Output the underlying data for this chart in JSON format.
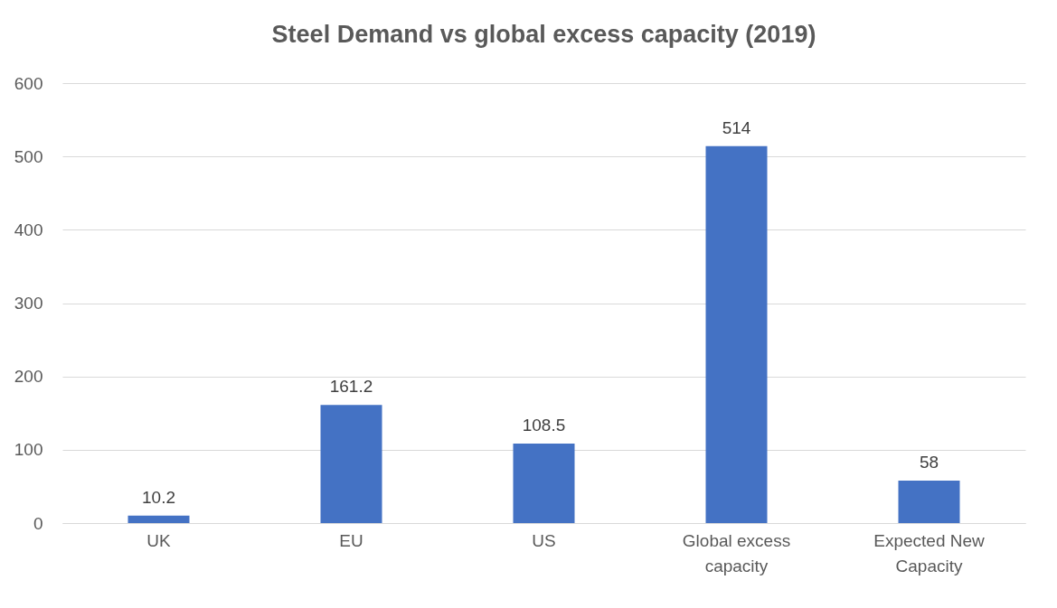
{
  "chart_data": {
    "type": "bar",
    "title": "Steel Demand vs global excess capacity (2019)",
    "categories": [
      "UK",
      "EU",
      "US",
      "Global excess\ncapacity",
      "Expected New\nCapacity"
    ],
    "values": [
      10.2,
      161.2,
      108.5,
      514,
      58
    ],
    "color": "#4472c4",
    "ylim": [
      0,
      600
    ],
    "yticks": [
      0,
      100,
      200,
      300,
      400,
      500,
      600
    ],
    "grid": "y",
    "data_labels": true
  }
}
